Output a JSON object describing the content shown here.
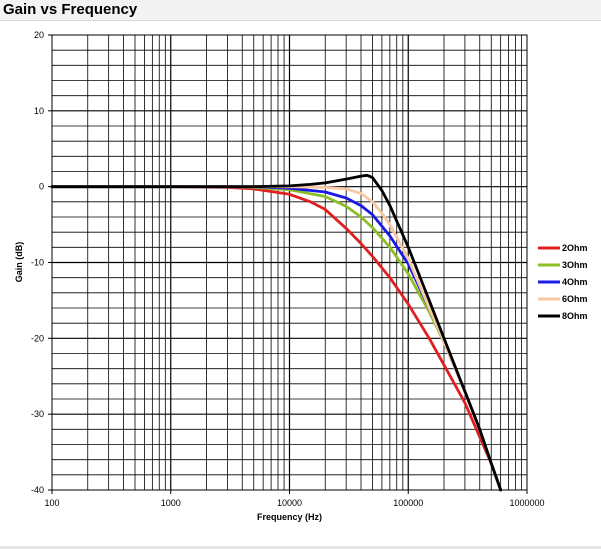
{
  "window": {
    "title": "Gain vs Frequency"
  },
  "chart_data": {
    "type": "line",
    "title": "",
    "xlabel": "Frequency (Hz)",
    "ylabel": "Gain (dB)",
    "x_scale": "log",
    "xlim": [
      100,
      1000000
    ],
    "ylim": [
      -40,
      20
    ],
    "grid": true,
    "legend_position": "right",
    "xticks": [
      "100",
      "1000",
      "10000",
      "100000",
      "1000000"
    ],
    "yticks": [
      "20",
      "10",
      "0",
      "-10",
      "-20",
      "-30",
      "-40"
    ],
    "series": [
      {
        "name": "2Ohm",
        "color": "#e02020",
        "x": [
          100,
          1000,
          3000,
          5000,
          10000,
          15000,
          20000,
          30000,
          40000,
          50000,
          70000,
          100000,
          150000,
          200000,
          300000,
          400000,
          500000,
          600000
        ],
        "y": [
          0,
          0,
          -0.1,
          -0.3,
          -1,
          -2,
          -3,
          -5.5,
          -7.5,
          -9.2,
          -12,
          -15.5,
          -20,
          -23.5,
          -28.5,
          -33,
          -36.5,
          -40
        ]
      },
      {
        "name": "3Ohm",
        "color": "#8cbf26",
        "x": [
          100,
          1000,
          3000,
          5000,
          10000,
          20000,
          30000,
          40000,
          50000,
          70000,
          100000,
          150000,
          200000,
          300000,
          400000,
          500000,
          600000
        ],
        "y": [
          0,
          0,
          0,
          -0.1,
          -0.4,
          -1.3,
          -2.6,
          -4,
          -5.4,
          -8,
          -11.5,
          -16.5,
          -20.5,
          -27,
          -32,
          -36.5,
          -40
        ]
      },
      {
        "name": "4Ohm",
        "color": "#1a1ae6",
        "x": [
          100,
          1000,
          5000,
          10000,
          20000,
          30000,
          40000,
          50000,
          70000,
          100000,
          150000,
          200000,
          300000,
          400000,
          500000,
          600000
        ],
        "y": [
          0,
          0,
          0,
          -0.2,
          -0.7,
          -1.5,
          -2.5,
          -3.7,
          -6.5,
          -10.2,
          -16,
          -20.5,
          -27,
          -32,
          -36.5,
          -40
        ]
      },
      {
        "name": "6Ohm",
        "color": "#f7c9a3",
        "x": [
          100,
          1000,
          5000,
          10000,
          20000,
          30000,
          40000,
          50000,
          60000,
          70000,
          100000,
          150000,
          200000,
          300000,
          400000,
          500000,
          600000
        ],
        "y": [
          0,
          0,
          0,
          0,
          -0.1,
          -0.3,
          -0.9,
          -2,
          -3.5,
          -5,
          -9.5,
          -16,
          -20.5,
          -27,
          -32,
          -36.5,
          -40
        ]
      },
      {
        "name": "8Ohm",
        "color": "#000000",
        "x": [
          100,
          1000,
          5000,
          10000,
          15000,
          20000,
          30000,
          40000,
          45000,
          50000,
          60000,
          70000,
          100000,
          150000,
          200000,
          300000,
          400000,
          500000,
          600000
        ],
        "y": [
          0,
          0,
          0,
          0.1,
          0.3,
          0.5,
          1,
          1.4,
          1.5,
          1.2,
          -0.5,
          -2.5,
          -8,
          -15,
          -20,
          -27,
          -32,
          -36.5,
          -40
        ]
      }
    ]
  }
}
